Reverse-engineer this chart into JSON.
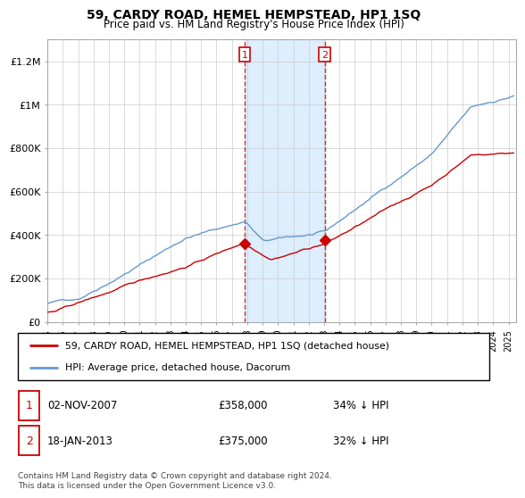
{
  "title": "59, CARDY ROAD, HEMEL HEMPSTEAD, HP1 1SQ",
  "subtitle": "Price paid vs. HM Land Registry's House Price Index (HPI)",
  "ylim": [
    0,
    1300000
  ],
  "yticks": [
    0,
    200000,
    400000,
    600000,
    800000,
    1000000,
    1200000
  ],
  "ytick_labels": [
    "£0",
    "£200K",
    "£400K",
    "£600K",
    "£800K",
    "£1M",
    "£1.2M"
  ],
  "legend_line1": "59, CARDY ROAD, HEMEL HEMPSTEAD, HP1 1SQ (detached house)",
  "legend_line2": "HPI: Average price, detached house, Dacorum",
  "sale1_label": "1",
  "sale1_date": "02-NOV-2007",
  "sale1_price": "£358,000",
  "sale1_hpi": "34% ↓ HPI",
  "sale2_label": "2",
  "sale2_date": "18-JAN-2013",
  "sale2_price": "£375,000",
  "sale2_hpi": "32% ↓ HPI",
  "footer": "Contains HM Land Registry data © Crown copyright and database right 2024.\nThis data is licensed under the Open Government Licence v3.0.",
  "red_color": "#cc0000",
  "blue_color": "#6699cc",
  "shade_color": "#ddeeff",
  "sale1_x": 2007.83,
  "sale1_y": 358000,
  "sale2_x": 2013.05,
  "sale2_y": 375000,
  "xmin": 1995,
  "xmax": 2025.5,
  "xtick_years": [
    1995,
    1996,
    1997,
    1998,
    1999,
    2000,
    2001,
    2002,
    2003,
    2004,
    2005,
    2006,
    2007,
    2008,
    2009,
    2010,
    2011,
    2012,
    2013,
    2014,
    2015,
    2016,
    2017,
    2018,
    2019,
    2020,
    2021,
    2022,
    2023,
    2024,
    2025
  ]
}
